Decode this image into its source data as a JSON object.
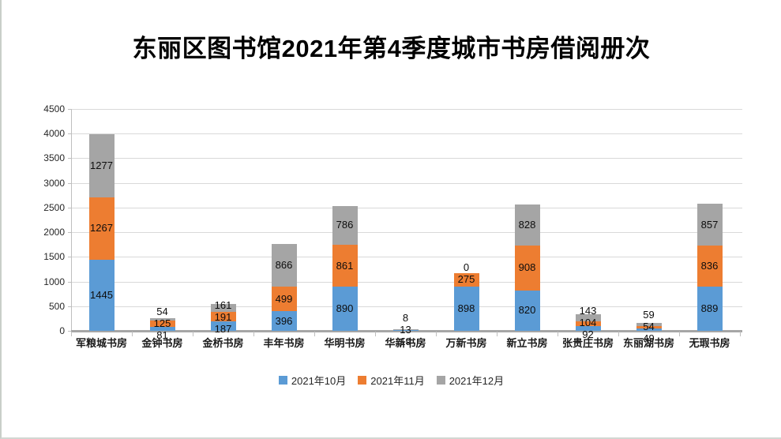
{
  "chart_data": {
    "type": "bar",
    "stacked": true,
    "title": "东丽区图书馆2021年第4季度城市书房借阅册次",
    "categories": [
      "军粮城书房",
      "金钟书房",
      "金桥书房",
      "丰年书房",
      "华明书房",
      "华新书房",
      "万新书房",
      "新立书房",
      "张贵庄书房",
      "东丽湖书房",
      "无瑕书房"
    ],
    "series": [
      {
        "name": "2021年10月",
        "color": "#5B9BD5",
        "values": [
          1445,
          81,
          187,
          396,
          890,
          19,
          898,
          820,
          92,
          49,
          889
        ]
      },
      {
        "name": "2021年11月",
        "color": "#ED7D31",
        "values": [
          1267,
          125,
          191,
          499,
          861,
          13,
          275,
          908,
          104,
          54,
          836
        ]
      },
      {
        "name": "2021年12月",
        "color": "#A5A5A5",
        "values": [
          1277,
          54,
          161,
          866,
          786,
          8,
          0,
          828,
          143,
          59,
          857
        ]
      }
    ],
    "ylim": [
      0,
      4500
    ],
    "yticks": [
      0,
      500,
      1000,
      1500,
      2000,
      2500,
      3000,
      3500,
      4000,
      4500
    ],
    "xlabel": "",
    "ylabel": "",
    "grid": "horizontal",
    "legend_position": "bottom",
    "data_labels": true
  }
}
